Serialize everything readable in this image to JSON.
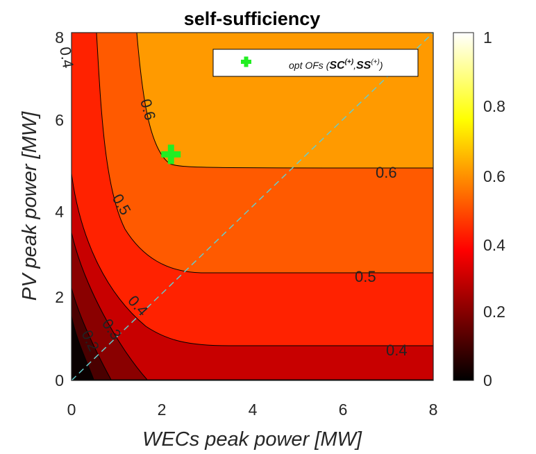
{
  "chart_data": {
    "type": "contour",
    "title": "self-sufficiency",
    "xlabel": "WECs peak power [MW]",
    "ylabel": "PV peak power [MW]",
    "xlim": [
      0,
      8
    ],
    "ylim": [
      0,
      8
    ],
    "xticks": [
      "0",
      "2",
      "4",
      "6",
      "8"
    ],
    "yticks": [
      "0",
      "2",
      "4",
      "6",
      "8"
    ],
    "colorbar": {
      "range": [
        0,
        1
      ],
      "ticks": [
        "0",
        "0.2",
        "0.4",
        "0.6",
        "0.8",
        "1"
      ],
      "colormap": "hot"
    },
    "contour_levels": [
      0.1,
      0.2,
      0.3,
      0.4,
      0.5,
      0.6
    ],
    "contour_labels": [
      "0.4",
      "0.6",
      "0.6",
      "0.5",
      "0.5",
      "0.4",
      "0.4",
      "0.3",
      "0.2"
    ],
    "optimum": {
      "x": 2.2,
      "y": 5.2,
      "label": "opt OFs (",
      "label_sc": "SC",
      "label_ss": "SS",
      "label_sup": "(+)",
      "label_comma": ",",
      "label_close": ")"
    },
    "reference_line": {
      "from": [
        0,
        0
      ],
      "to": [
        8,
        8
      ],
      "style": "dashed",
      "color": "#66cccc"
    },
    "colors": {
      "marker": "#22ee22",
      "line": "#66cccc"
    }
  }
}
